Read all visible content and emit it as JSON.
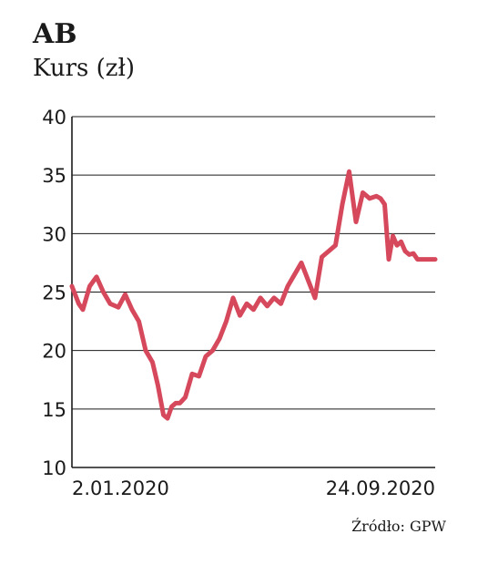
{
  "header": {
    "title": "AB",
    "subtitle": "Kurs (zł)"
  },
  "footer": {
    "source": "Źródło: GPW"
  },
  "colors": {
    "line": "#d6495c",
    "grid": "#1a1a1a"
  },
  "chart_data": {
    "type": "line",
    "title": "AB",
    "subtitle": "Kurs (zł)",
    "ylim": [
      10,
      40
    ],
    "yticks": [
      10,
      15,
      20,
      25,
      30,
      35,
      40
    ],
    "grid": true,
    "x_tick_labels": [
      "2.01.2020",
      "24.09.2020"
    ],
    "x_range": [
      "2020-01-02",
      "2020-09-24"
    ],
    "series": [
      {
        "name": "",
        "x": [
          "2020-01-02",
          "2020-01-07",
          "2020-01-10",
          "2020-01-15",
          "2020-01-20",
          "2020-01-25",
          "2020-01-30",
          "2020-02-05",
          "2020-02-10",
          "2020-02-15",
          "2020-02-20",
          "2020-02-25",
          "2020-03-01",
          "2020-03-05",
          "2020-03-09",
          "2020-03-12",
          "2020-03-15",
          "2020-03-18",
          "2020-03-21",
          "2020-03-25",
          "2020-03-30",
          "2020-04-04",
          "2020-04-09",
          "2020-04-14",
          "2020-04-19",
          "2020-04-24",
          "2020-04-29",
          "2020-05-04",
          "2020-05-09",
          "2020-05-14",
          "2020-05-19",
          "2020-05-24",
          "2020-05-29",
          "2020-06-03",
          "2020-06-08",
          "2020-06-13",
          "2020-06-18",
          "2020-06-23",
          "2020-06-28",
          "2020-07-03",
          "2020-07-08",
          "2020-07-13",
          "2020-07-18",
          "2020-07-23",
          "2020-07-28",
          "2020-08-02",
          "2020-08-07",
          "2020-08-12",
          "2020-08-15",
          "2020-08-18",
          "2020-08-21",
          "2020-08-24",
          "2020-08-27",
          "2020-08-30",
          "2020-09-02",
          "2020-09-05",
          "2020-09-08",
          "2020-09-11",
          "2020-09-14",
          "2020-09-17",
          "2020-09-20",
          "2020-09-24"
        ],
        "y": [
          25.5,
          24.0,
          23.5,
          25.5,
          26.3,
          25.0,
          24.0,
          23.7,
          24.8,
          23.5,
          22.5,
          20.0,
          19.0,
          17.0,
          14.5,
          14.2,
          15.2,
          15.5,
          15.5,
          16.0,
          18.0,
          17.8,
          19.5,
          20.0,
          21.0,
          22.5,
          24.5,
          23.0,
          24.0,
          23.5,
          24.5,
          23.8,
          24.5,
          24.0,
          25.5,
          26.5,
          27.5,
          26.0,
          24.5,
          28.0,
          28.5,
          29.0,
          32.5,
          35.3,
          31.0,
          33.5,
          33.0,
          33.2,
          33.0,
          32.5,
          27.8,
          29.8,
          29.0,
          29.3,
          28.5,
          28.2,
          28.3,
          27.8,
          27.8,
          27.8,
          27.8,
          27.8
        ]
      }
    ]
  }
}
